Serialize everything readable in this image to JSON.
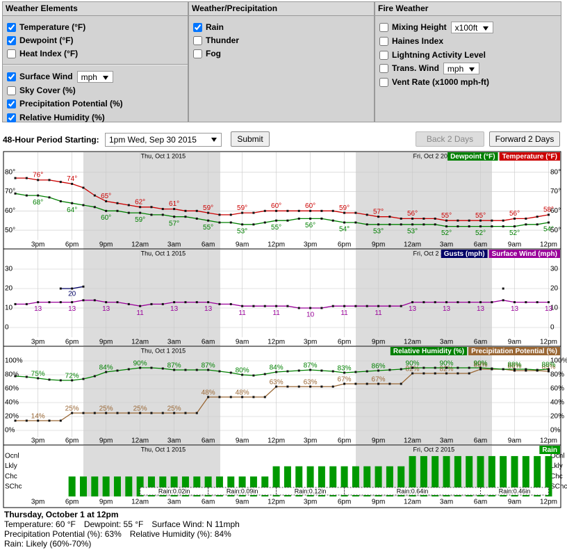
{
  "form": {
    "weather_elements": {
      "title": "Weather Elements",
      "groups": [
        [
          {
            "label": "Temperature (°F)",
            "checked": true
          },
          {
            "label": "Dewpoint (°F)",
            "checked": true
          },
          {
            "label": "Heat Index (°F)",
            "checked": false
          }
        ],
        [
          {
            "label": "Surface Wind",
            "checked": true,
            "select": "mph"
          },
          {
            "label": "Sky Cover (%)",
            "checked": false
          },
          {
            "label": "Precipitation Potential (%)",
            "checked": true
          },
          {
            "label": "Relative Humidity (%)",
            "checked": true
          }
        ]
      ]
    },
    "weather_precipitation": {
      "title": "Weather/Precipitation",
      "groups": [
        [
          {
            "label": "Rain",
            "checked": true
          },
          {
            "label": "Thunder",
            "checked": false
          },
          {
            "label": "Fog",
            "checked": false
          }
        ]
      ]
    },
    "fire_weather": {
      "title": "Fire Weather",
      "groups": [
        [
          {
            "label": "Mixing Height",
            "checked": false,
            "select": "x100ft"
          },
          {
            "label": "Haines Index",
            "checked": false
          },
          {
            "label": "Lightning Activity Level",
            "checked": false
          },
          {
            "label": "Trans. Wind",
            "checked": false,
            "select": "mph"
          },
          {
            "label": "Vent Rate (x1000 mph-ft)",
            "checked": false
          }
        ]
      ]
    }
  },
  "controls": {
    "period_label": "48-Hour Period Starting:",
    "period": "1pm Wed, Sep 30 2015",
    "submit": "Submit",
    "back": "Back 2 Days",
    "back_disabled": true,
    "forward": "Forward 2 Days"
  },
  "chart_data": [
    {
      "type": "line",
      "grid": true,
      "legend": "top-right",
      "date_labels": [
        "Thu, Oct 1 2015",
        "Fri, Oct 2 2015"
      ],
      "categories": [
        null,
        null,
        "3pm",
        null,
        null,
        "6pm",
        null,
        null,
        "9pm",
        null,
        null,
        "12am",
        null,
        null,
        "3am",
        null,
        null,
        "6am",
        null,
        null,
        "9am",
        null,
        null,
        "12pm",
        null,
        null,
        "3pm",
        null,
        null,
        "6pm",
        null,
        null,
        "9pm",
        null,
        null,
        "12am",
        null,
        null,
        "3am",
        null,
        null,
        "6am",
        null,
        null,
        "9am",
        null,
        null,
        "12pm"
      ],
      "ylim": [
        45,
        90
      ],
      "yticks": [
        {
          "value": 50,
          "label": "50°"
        },
        {
          "value": 60,
          "label": "60°"
        },
        {
          "value": 70,
          "label": "70°"
        },
        {
          "value": 80,
          "label": "80°"
        }
      ],
      "series": [
        {
          "name": "Temperature (°F)",
          "color": "#cc0000",
          "values": [
            77,
            77,
            76,
            76,
            75,
            74,
            72,
            68,
            65,
            64,
            63,
            62,
            62,
            61,
            61,
            60,
            60,
            59,
            58,
            58,
            59,
            59,
            60,
            60,
            60,
            60,
            60,
            60,
            60,
            59,
            59,
            58,
            57,
            57,
            56,
            56,
            56,
            56,
            55,
            55,
            55,
            55,
            55,
            55,
            56,
            56,
            57,
            58
          ],
          "value_labels": [
            null,
            null,
            "76°",
            null,
            null,
            "74°",
            null,
            null,
            "65°",
            null,
            null,
            "62°",
            null,
            null,
            "61°",
            null,
            null,
            "59°",
            null,
            null,
            "59°",
            null,
            null,
            "60°",
            null,
            null,
            "60°",
            null,
            null,
            "59°",
            null,
            null,
            "57°",
            null,
            null,
            "56°",
            null,
            null,
            "55°",
            null,
            null,
            "55°",
            null,
            null,
            "56°",
            null,
            null,
            "58°"
          ]
        },
        {
          "name": "Dewpoint (°F)",
          "color": "#008000",
          "values": [
            69,
            68,
            68,
            67,
            65,
            64,
            63,
            62,
            60,
            60,
            59,
            59,
            58,
            58,
            57,
            57,
            56,
            55,
            54,
            54,
            53,
            53,
            54,
            55,
            55,
            56,
            56,
            56,
            55,
            54,
            54,
            53,
            53,
            53,
            53,
            53,
            53,
            53,
            52,
            52,
            52,
            52,
            52,
            52,
            52,
            53,
            53,
            54
          ],
          "value_labels": [
            null,
            null,
            "68°",
            null,
            null,
            "64°",
            null,
            null,
            "60°",
            null,
            null,
            "59°",
            null,
            null,
            "57°",
            null,
            null,
            "55°",
            null,
            null,
            "53°",
            null,
            null,
            "55°",
            null,
            null,
            "56°",
            null,
            null,
            "54°",
            null,
            null,
            "53°",
            null,
            null,
            "53°",
            null,
            null,
            "52°",
            null,
            null,
            "52°",
            null,
            null,
            "52°",
            null,
            null,
            "54°"
          ]
        }
      ]
    },
    {
      "type": "line",
      "grid": true,
      "legend": "top-right",
      "date_labels": [
        "Thu, Oct 1 2015",
        "Fri, Oct 2 2015"
      ],
      "categories": [
        null,
        null,
        "3pm",
        null,
        null,
        "6pm",
        null,
        null,
        "9pm",
        null,
        null,
        "12am",
        null,
        null,
        "3am",
        null,
        null,
        "6am",
        null,
        null,
        "9am",
        null,
        null,
        "12pm",
        null,
        null,
        "3pm",
        null,
        null,
        "6pm",
        null,
        null,
        "9pm",
        null,
        null,
        "12am",
        null,
        null,
        "3am",
        null,
        null,
        "6am",
        null,
        null,
        "9am",
        null,
        null,
        "12pm"
      ],
      "ylim": [
        -5,
        40
      ],
      "yticks": [
        0,
        10,
        20,
        30
      ],
      "series": [
        {
          "name": "Surface Wind (mph)",
          "color": "#990099",
          "values": [
            12,
            12,
            13,
            13,
            13,
            13,
            14,
            14,
            13,
            13,
            12,
            11,
            12,
            12,
            13,
            13,
            13,
            13,
            12,
            12,
            11,
            11,
            11,
            11,
            11,
            10,
            10,
            10,
            11,
            11,
            11,
            11,
            11,
            11,
            11,
            13,
            13,
            13,
            13,
            13,
            13,
            13,
            13,
            14,
            13,
            13,
            13,
            13
          ],
          "value_labels": [
            null,
            null,
            "13",
            null,
            null,
            "13",
            null,
            null,
            "13",
            null,
            null,
            "11",
            null,
            null,
            "13",
            null,
            null,
            "13",
            null,
            null,
            "11",
            null,
            null,
            "11",
            null,
            null,
            "10",
            null,
            null,
            "11",
            null,
            null,
            "11",
            null,
            null,
            "13",
            null,
            null,
            "13",
            null,
            null,
            "13",
            null,
            null,
            "13",
            null,
            null,
            "13"
          ]
        },
        {
          "name": "Gusts (mph)",
          "color": "#000066",
          "values": [
            null,
            null,
            null,
            null,
            20,
            20,
            21,
            null,
            null,
            null,
            null,
            null,
            null,
            null,
            null,
            null,
            null,
            null,
            null,
            null,
            null,
            null,
            null,
            null,
            null,
            null,
            null,
            null,
            null,
            null,
            null,
            null,
            null,
            null,
            null,
            null,
            null,
            null,
            null,
            null,
            null,
            null,
            null,
            20,
            null,
            null,
            null,
            null
          ],
          "value_labels": [
            null,
            null,
            null,
            null,
            null,
            "20",
            null,
            null,
            null,
            null,
            null,
            null,
            null,
            null,
            null,
            null,
            null,
            null,
            null,
            null,
            null,
            null,
            null,
            null,
            null,
            null,
            null,
            null,
            null,
            null,
            null,
            null,
            null,
            null,
            null,
            null,
            null,
            null,
            null,
            null,
            null,
            null,
            null,
            null,
            null,
            null,
            null,
            null
          ]
        }
      ]
    },
    {
      "type": "line",
      "grid": true,
      "legend": "top-right",
      "date_labels": [
        "Thu, Oct 1 2015",
        "Fri, Oct 2 2015"
      ],
      "categories": [
        null,
        null,
        "3pm",
        null,
        null,
        "6pm",
        null,
        null,
        "9pm",
        null,
        null,
        "12am",
        null,
        null,
        "3am",
        null,
        null,
        "6am",
        null,
        null,
        "9am",
        null,
        null,
        "12pm",
        null,
        null,
        "3pm",
        null,
        null,
        "6pm",
        null,
        null,
        "9pm",
        null,
        null,
        "12am",
        null,
        null,
        "3am",
        null,
        null,
        "6am",
        null,
        null,
        "9am",
        null,
        null,
        "12pm"
      ],
      "ylim": [
        -10,
        120
      ],
      "yticks": [
        {
          "value": 0,
          "label": "0%"
        },
        {
          "value": 20,
          "label": "20%"
        },
        {
          "value": 40,
          "label": "40%"
        },
        {
          "value": 60,
          "label": "60%"
        },
        {
          "value": 80,
          "label": "80%"
        },
        {
          "value": 100,
          "label": "100%"
        }
      ],
      "series": [
        {
          "name": "Precipitation Potential (%)",
          "color": "#996633",
          "values": [
            14,
            14,
            14,
            14,
            14,
            25,
            25,
            25,
            25,
            25,
            25,
            25,
            25,
            25,
            25,
            25,
            25,
            48,
            48,
            48,
            48,
            48,
            48,
            63,
            63,
            63,
            63,
            63,
            63,
            67,
            67,
            67,
            67,
            67,
            67,
            82,
            82,
            82,
            82,
            82,
            82,
            88,
            88,
            88,
            86,
            86,
            86,
            85
          ],
          "value_labels": [
            null,
            null,
            "14%",
            null,
            null,
            "25%",
            null,
            null,
            "25%",
            null,
            null,
            "25%",
            null,
            null,
            "25%",
            null,
            null,
            "48%",
            null,
            null,
            "48%",
            null,
            null,
            "63%",
            null,
            null,
            "63%",
            null,
            null,
            "67%",
            null,
            null,
            "67%",
            null,
            null,
            "82%",
            null,
            null,
            "82%",
            null,
            null,
            "88%",
            null,
            null,
            "86%",
            null,
            null,
            "85%"
          ]
        },
        {
          "name": "Relative Humidity (%)",
          "color": "#008000",
          "values": [
            78,
            77,
            75,
            73,
            72,
            72,
            74,
            78,
            84,
            86,
            88,
            90,
            90,
            89,
            87,
            87,
            87,
            87,
            85,
            83,
            80,
            79,
            81,
            84,
            85,
            86,
            87,
            86,
            85,
            83,
            84,
            85,
            86,
            87,
            88,
            90,
            90,
            90,
            90,
            90,
            90,
            90,
            89,
            88,
            88,
            88,
            87,
            88
          ],
          "value_labels": [
            null,
            null,
            "75%",
            null,
            null,
            "72%",
            null,
            null,
            "84%",
            null,
            null,
            "90%",
            null,
            null,
            "87%",
            null,
            null,
            "87%",
            null,
            null,
            "80%",
            null,
            null,
            "84%",
            null,
            null,
            "87%",
            null,
            null,
            "83%",
            null,
            null,
            "86%",
            null,
            null,
            "90%",
            null,
            null,
            "90%",
            null,
            null,
            "90%",
            null,
            null,
            "88%",
            null,
            null,
            "88%"
          ]
        }
      ]
    },
    {
      "type": "bar",
      "legend": "top-right",
      "date_labels": [
        "Thu, Oct 1 2015",
        "Fri, Oct 2 2015"
      ],
      "categories": [
        null,
        null,
        "3pm",
        null,
        null,
        "6pm",
        null,
        null,
        "9pm",
        null,
        null,
        "12am",
        null,
        null,
        "3am",
        null,
        null,
        "6am",
        null,
        null,
        "9am",
        null,
        null,
        "12pm",
        null,
        null,
        "3pm",
        null,
        null,
        "6pm",
        null,
        null,
        "9pm",
        null,
        null,
        "12am",
        null,
        null,
        "3am",
        null,
        null,
        "6am",
        null,
        null,
        "9am",
        null,
        null,
        "12pm"
      ],
      "ylevels": [
        "SChc",
        "Chc",
        "Lkly",
        "Ocnl"
      ],
      "series": [
        {
          "name": "Rain",
          "color": "#009900",
          "values": [
            null,
            null,
            null,
            null,
            null,
            "Chc",
            "Chc",
            "Chc",
            "Chc",
            "Chc",
            "Chc",
            "Chc",
            "Chc",
            "Chc",
            "Chc",
            "Chc",
            "Chc",
            "Chc",
            "Chc",
            "Chc",
            "Chc",
            "Chc",
            "Chc",
            "Lkly",
            "Lkly",
            "Lkly",
            "Lkly",
            "Lkly",
            "Lkly",
            "Lkly",
            "Lkly",
            "Lkly",
            "Lkly",
            "Lkly",
            "Lkly",
            "Ocnl",
            "Ocnl",
            "Ocnl",
            "Ocnl",
            "Ocnl",
            "Ocnl",
            "Ocnl",
            "Ocnl",
            "Ocnl",
            "Ocnl",
            "Ocnl",
            "Ocnl",
            "Ocnl"
          ]
        }
      ],
      "amounts": [
        0.02,
        0.09,
        0.12,
        0.64,
        0.46
      ],
      "amount_labels": [
        "Rain:0.02in",
        "Rain:0.09in",
        "Rain:0.12in",
        "Rain:0.64in",
        "Rain:0.46in"
      ]
    }
  ],
  "details": {
    "title": "Thursday, October 1 at 12pm",
    "lines": [
      [
        "Temperature: 60 °F",
        "Dewpoint: 55 °F",
        "Surface Wind: N 11mph"
      ],
      [
        "Precipitation Potential (%): 63%",
        "Relative Humidity (%): 84%"
      ],
      [
        "Rain: Likely (60%-70%)"
      ]
    ]
  }
}
